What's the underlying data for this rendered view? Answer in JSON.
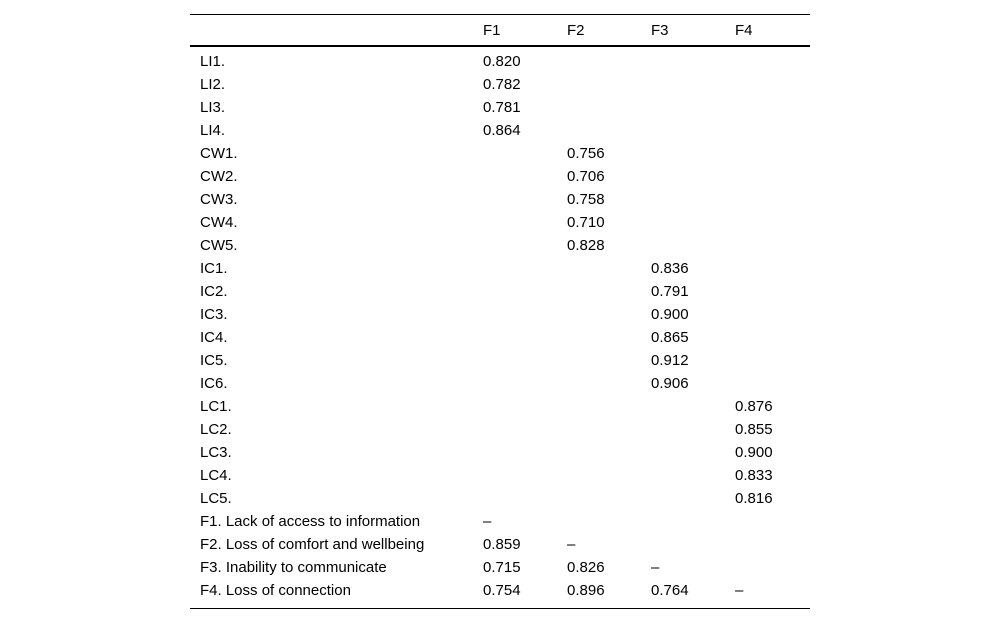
{
  "colors": {
    "background": "#ffffff",
    "text": "#000000",
    "rule": "#000000"
  },
  "table": {
    "columns": [
      "",
      "F1",
      "F2",
      "F3",
      "F4"
    ],
    "rows": [
      [
        "LI1.",
        "0.820",
        "",
        "",
        ""
      ],
      [
        "LI2.",
        "0.782",
        "",
        "",
        ""
      ],
      [
        "LI3.",
        "0.781",
        "",
        "",
        ""
      ],
      [
        "LI4.",
        "0.864",
        "",
        "",
        ""
      ],
      [
        "CW1.",
        "",
        "0.756",
        "",
        ""
      ],
      [
        "CW2.",
        "",
        "0.706",
        "",
        ""
      ],
      [
        "CW3.",
        "",
        "0.758",
        "",
        ""
      ],
      [
        "CW4.",
        "",
        "0.710",
        "",
        ""
      ],
      [
        "CW5.",
        "",
        "0.828",
        "",
        ""
      ],
      [
        "IC1.",
        "",
        "",
        "0.836",
        ""
      ],
      [
        "IC2.",
        "",
        "",
        "0.791",
        ""
      ],
      [
        "IC3.",
        "",
        "",
        "0.900",
        ""
      ],
      [
        "IC4.",
        "",
        "",
        "0.865",
        ""
      ],
      [
        "IC5.",
        "",
        "",
        "0.912",
        ""
      ],
      [
        "IC6.",
        "",
        "",
        "0.906",
        ""
      ],
      [
        "LC1.",
        "",
        "",
        "",
        "0.876"
      ],
      [
        "LC2.",
        "",
        "",
        "",
        "0.855"
      ],
      [
        "LC3.",
        "",
        "",
        "",
        "0.900"
      ],
      [
        "LC4.",
        "",
        "",
        "",
        "0.833"
      ],
      [
        "LC5.",
        "",
        "",
        "",
        "0.816"
      ],
      [
        "F1. Lack of access to information",
        "–",
        "",
        "",
        ""
      ],
      [
        "F2. Loss of comfort and wellbeing",
        "0.859",
        "–",
        "",
        ""
      ],
      [
        "F3. Inability to communicate",
        "0.715",
        "0.826",
        "–",
        ""
      ],
      [
        "F4. Loss of connection",
        "0.754",
        "0.896",
        "0.764",
        "–"
      ]
    ]
  }
}
